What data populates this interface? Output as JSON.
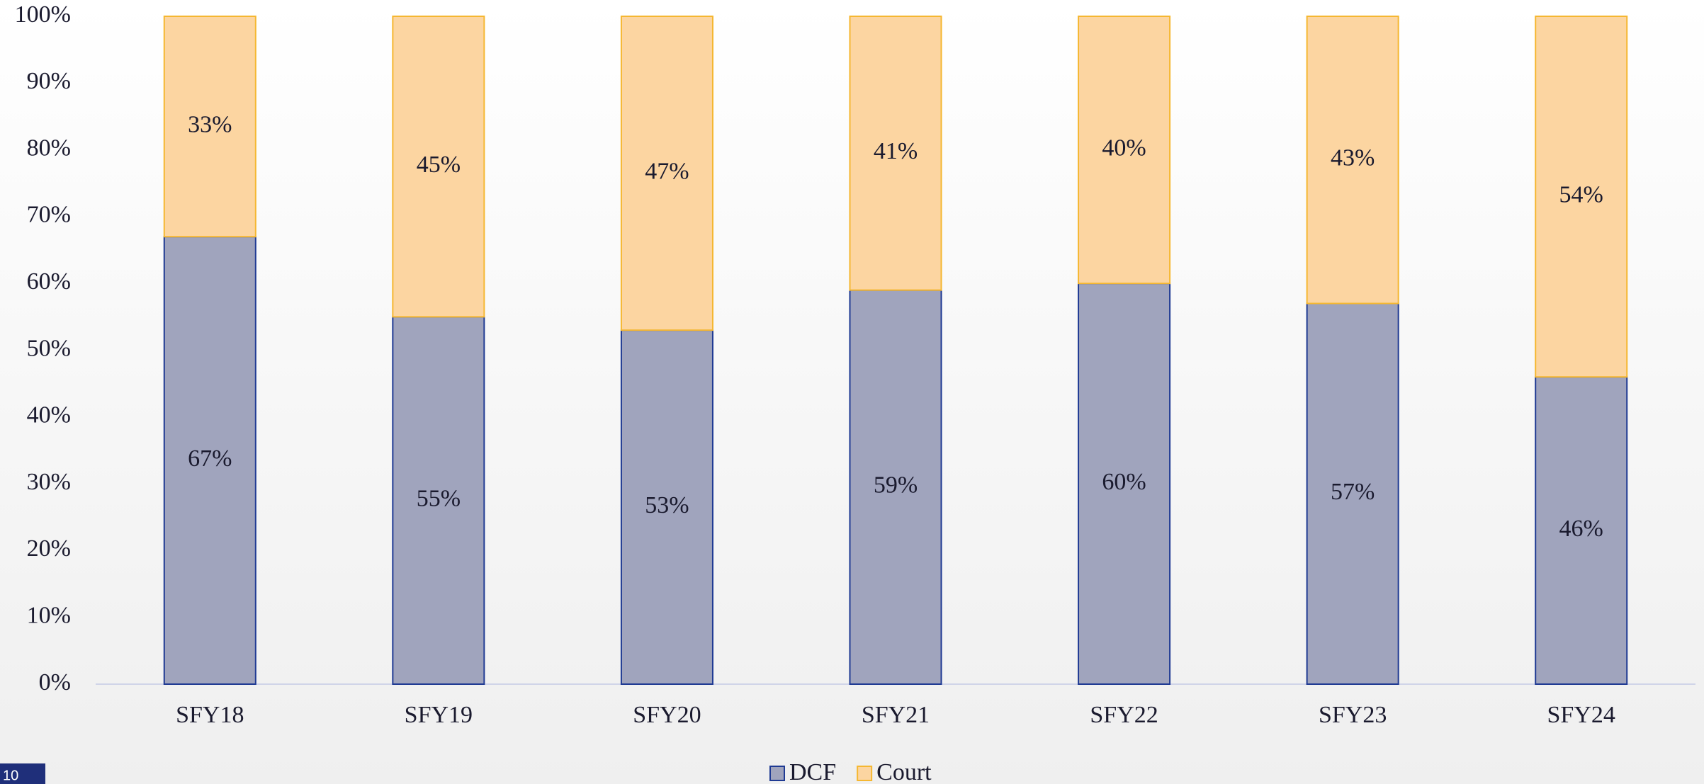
{
  "chart_data": {
    "type": "stacked_bar",
    "categories": [
      "SFY18",
      "SFY19",
      "SFY20",
      "SFY21",
      "SFY22",
      "SFY23",
      "SFY24"
    ],
    "series": [
      {
        "name": "DCF",
        "color": "#a0a4bd",
        "stroke": "#1f3a93",
        "values": [
          67,
          55,
          53,
          59,
          60,
          57,
          46
        ],
        "value_labels": [
          "67%",
          "55%",
          "53%",
          "59%",
          "60%",
          "57%",
          "46%"
        ]
      },
      {
        "name": "Court",
        "color": "#fcd5a1",
        "stroke": "#f5b731",
        "values": [
          33,
          45,
          47,
          41,
          40,
          43,
          54
        ],
        "value_labels": [
          "33%",
          "45%",
          "47%",
          "41%",
          "40%",
          "43%",
          "54%"
        ]
      }
    ],
    "ylim": [
      0,
      100
    ],
    "yticks": [
      {
        "value": 0,
        "label": "0%"
      },
      {
        "value": 10,
        "label": "10%"
      },
      {
        "value": 20,
        "label": "20%"
      },
      {
        "value": 30,
        "label": "30%"
      },
      {
        "value": 40,
        "label": "40%"
      },
      {
        "value": 50,
        "label": "50%"
      },
      {
        "value": 60,
        "label": "60%"
      },
      {
        "value": 70,
        "label": "70%"
      },
      {
        "value": 80,
        "label": "80%"
      },
      {
        "value": 90,
        "label": "90%"
      },
      {
        "value": 100,
        "label": "100%"
      }
    ],
    "grid": false,
    "legend": "bottom"
  },
  "page_number": "10"
}
